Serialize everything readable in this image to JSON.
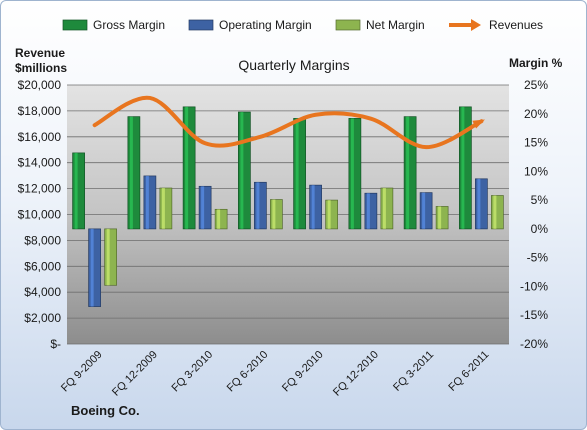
{
  "chart_data": {
    "type": "bar",
    "title": "Quarterly Margins",
    "categories": [
      "FQ 9-2009",
      "FQ 12-2009",
      "FQ 3-2010",
      "FQ 6-2010",
      "FQ 9-2010",
      "FQ 12-2010",
      "FQ 3-2011",
      "FQ 6-2011"
    ],
    "series": [
      {
        "name": "Gross Margin",
        "axis": "right",
        "color": "#1e8a3c",
        "values": [
          13.2,
          19.5,
          21.2,
          20.3,
          19.2,
          19.2,
          19.5,
          21.2
        ]
      },
      {
        "name": "Operating Margin",
        "axis": "right",
        "color": "#3d62a3",
        "values": [
          -13.5,
          9.2,
          7.4,
          8.1,
          7.6,
          6.2,
          6.3,
          8.7
        ]
      },
      {
        "name": "Net Margin",
        "axis": "right",
        "color": "#8db44f",
        "values": [
          -9.8,
          7.1,
          3.4,
          5.1,
          5.0,
          7.1,
          3.9,
          5.8
        ]
      }
    ],
    "line_series": {
      "name": "Revenues",
      "axis": "left",
      "color": "#e8751f",
      "values": [
        16900,
        19000,
        15500,
        16000,
        17700,
        17400,
        15200,
        17200
      ]
    },
    "left_axis": {
      "label": "Revenue $millions",
      "ylim": [
        0,
        20000
      ],
      "ticks": [
        "$-",
        "$2,000",
        "$4,000",
        "$6,000",
        "$8,000",
        "$10,000",
        "$12,000",
        "$14,000",
        "$16,000",
        "$18,000",
        "$20,000"
      ]
    },
    "right_axis": {
      "label": "Margin %",
      "ylim": [
        -20,
        25
      ],
      "ticks": [
        "-20%",
        "-15%",
        "-10%",
        "-5%",
        "0%",
        "5%",
        "10%",
        "15%",
        "20%",
        "25%"
      ]
    },
    "legend_placement": "top",
    "grid": true
  },
  "footer": {
    "company": "Boeing Co."
  }
}
